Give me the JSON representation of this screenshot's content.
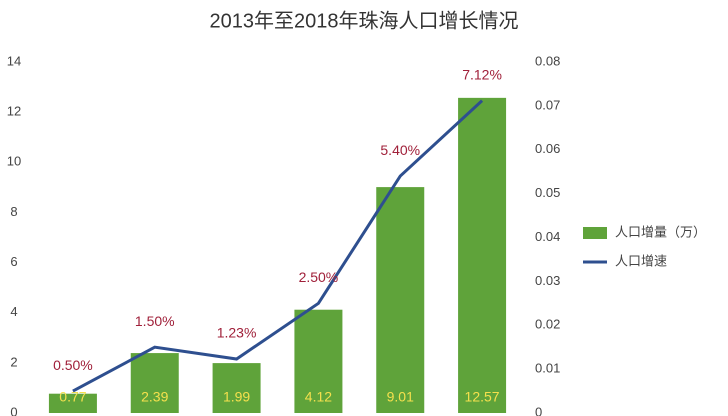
{
  "chart_data": {
    "type": "bar",
    "title": "2013年至2018年珠海人口增长情况",
    "categories": [
      null,
      null,
      null,
      null,
      null,
      null
    ],
    "series": [
      {
        "name": "人口增量（万）",
        "type": "bar",
        "color": "#5fa33a",
        "label_color": "#f4e04d",
        "values": [
          0.77,
          2.39,
          1.99,
          4.12,
          9.01,
          12.57
        ]
      },
      {
        "name": "人口增速",
        "type": "line",
        "axis": "y2",
        "color": "#2e4f8f",
        "label_color": "#a0203a",
        "values": [
          0.005,
          0.015,
          0.0123,
          0.025,
          0.054,
          0.0712
        ],
        "value_labels": [
          "0.50%",
          "1.50%",
          "1.23%",
          "2.50%",
          "5.40%",
          "7.12%"
        ]
      }
    ],
    "ylim": [
      0,
      14
    ],
    "yticks": [
      0,
      2,
      4,
      6,
      8,
      10,
      12,
      14
    ],
    "y2lim": [
      0,
      0.08
    ],
    "y2ticks": [
      0,
      0.01,
      0.02,
      0.03,
      0.04,
      0.05,
      0.06,
      0.07,
      0.08
    ],
    "grid": false,
    "legend": "right"
  }
}
